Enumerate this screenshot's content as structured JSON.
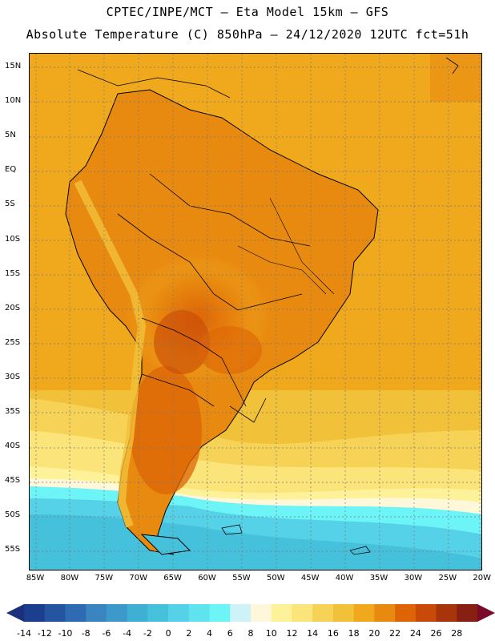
{
  "header": {
    "line1": "CPTEC/INPE/MCT —  Eta Model 15km — GFS",
    "line2": "Absolute Temperature (C) 850hPa — 24/12/2020 12UTC fct=51h"
  },
  "lat_labels": [
    "15N",
    "10N",
    "5N",
    "EQ",
    "5S",
    "10S",
    "15S",
    "20S",
    "25S",
    "30S",
    "35S",
    "40S",
    "45S",
    "50S",
    "55S"
  ],
  "lon_labels": [
    "85W",
    "80W",
    "75W",
    "70W",
    "65W",
    "60W",
    "55W",
    "50W",
    "45W",
    "40W",
    "35W",
    "30W",
    "25W",
    "20W"
  ],
  "colorbar": {
    "labels": [
      "-14",
      "-12",
      "-10",
      "-8",
      "-6",
      "-4",
      "-2",
      "0",
      "2",
      "4",
      "6",
      "8",
      "10",
      "12",
      "14",
      "16",
      "18",
      "20",
      "22",
      "24",
      "26",
      "28"
    ],
    "colors": [
      "#1b3f8e",
      "#2554a0",
      "#2f6bb3",
      "#3a84c0",
      "#3d99c9",
      "#3fafd3",
      "#45c1dc",
      "#56d2e8",
      "#5fe3ee",
      "#6cf4f7",
      "#cdf3f8",
      "#fff7d9",
      "#fdf29a",
      "#fbe57a",
      "#f6d356",
      "#f2c13a",
      "#f0a91c",
      "#e88a10",
      "#de6406",
      "#c84a08",
      "#a8340c",
      "#872012"
    ],
    "under_color": "#1b2f7a",
    "over_color": "#7a0a2a"
  }
}
